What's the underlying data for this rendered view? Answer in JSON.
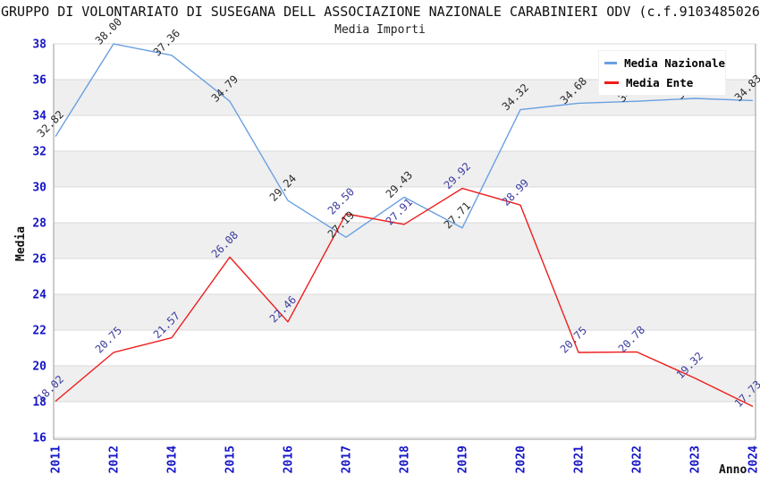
{
  "chart_data": {
    "type": "line",
    "title": "GRUPPO DI VOLONTARIATO DI SUSEGANA DELL ASSOCIAZIONE NAZIONALE CARABINIERI ODV (c.f.9103485026",
    "subtitle": "Media Importi",
    "xlabel": "Anno",
    "ylabel": "Media",
    "x": [
      2011,
      2012,
      2014,
      2015,
      2016,
      2017,
      2018,
      2019,
      2020,
      2021,
      2022,
      2023,
      2024
    ],
    "series": [
      {
        "name": "Media Nazionale",
        "color": "#69A0E1",
        "label_color": "#2b2b2b",
        "values": [
          32.82,
          38.0,
          37.36,
          34.79,
          29.24,
          27.19,
          29.43,
          27.71,
          34.32,
          34.68,
          34.79,
          34.95,
          34.83
        ]
      },
      {
        "name": "Media Ente",
        "color": "#EE1C1C",
        "label_color": "#3C3CA0",
        "values": [
          18.02,
          20.75,
          21.57,
          26.08,
          22.46,
          28.5,
          27.91,
          29.92,
          28.99,
          20.75,
          20.78,
          19.32,
          17.73
        ]
      }
    ],
    "ylim": [
      16,
      38
    ],
    "ytick_step": 2,
    "grid": "horizontal",
    "bands": "alternating-gray",
    "band_color": "#efefef",
    "gridline_color": "#d9d9d9",
    "spine_color": "#999999",
    "tick_label_color": "#1414C8",
    "legend_position": "top-right"
  }
}
